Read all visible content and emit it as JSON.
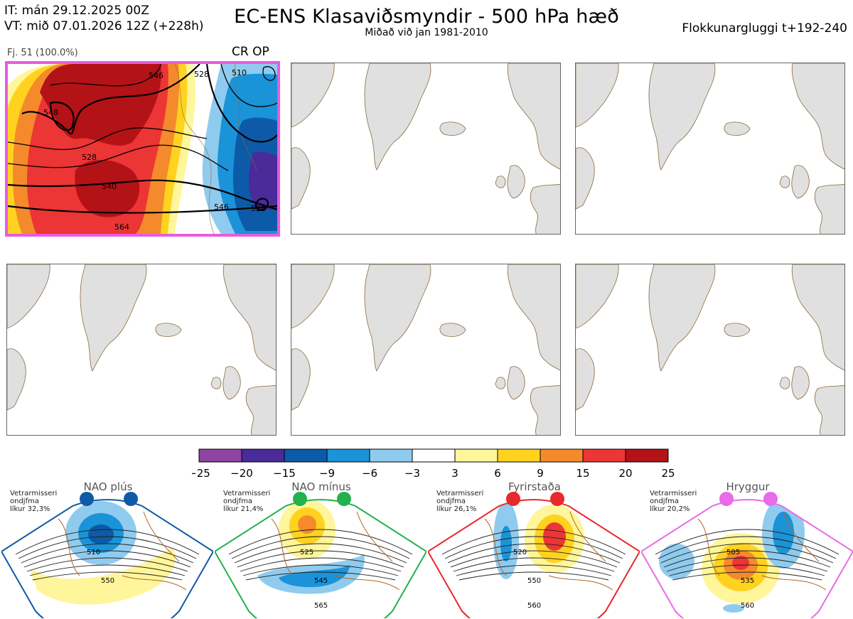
{
  "header": {
    "it_line": "IT: mán 29.12.2025 00Z",
    "vt_line": "VT: mið 07.01.2026 12Z  (+228h)",
    "title": "EC-ENS Klasaviðsmyndir - 500 hPa hæð",
    "subtitle": "Miðað við jan 1981-2010",
    "window_label": "Flokkunargluggi t+192-240"
  },
  "active_panel": {
    "caption": "Fj. 51 (100.0%)",
    "tag": "CR OP",
    "border_color": "#e85be0",
    "contour_labels": [
      "548",
      "528",
      "540",
      "546",
      "564",
      "546",
      "528",
      "510",
      "528"
    ]
  },
  "colorbar": {
    "ticks": [
      "−25",
      "−20",
      "−15",
      "−9",
      "−6",
      "−3",
      "3",
      "6",
      "9",
      "15",
      "20",
      "25"
    ],
    "colors": [
      "#8e44a0",
      "#4b2a9a",
      "#0c5aa8",
      "#1a93d8",
      "#8fcbee",
      "#ffffff",
      "#fff59a",
      "#ffd21f",
      "#f48a2c",
      "#ec3535",
      "#b31217"
    ]
  },
  "regimes": [
    {
      "name": "NAO plús",
      "meta_lines": [
        "Vetrarmisseri",
        "ondjfma",
        "líkur 32,3%"
      ],
      "color": "#0f5aa6",
      "labels": [
        "510",
        "550"
      ]
    },
    {
      "name": "NAO mínus",
      "meta_lines": [
        "Vetrarmisseri",
        "ondjfma",
        "líkur 21,4%"
      ],
      "color": "#22b14c",
      "labels": [
        "525",
        "545",
        "565"
      ]
    },
    {
      "name": "Fyrirstaða",
      "meta_lines": [
        "Vetrarmisseri",
        "ondjfma",
        "líkur 26,1%"
      ],
      "color": "#e8282b",
      "labels": [
        "520",
        "550",
        "560"
      ]
    },
    {
      "name": "Hryggur",
      "meta_lines": [
        "Vetrarmisseri",
        "ondjfma",
        "líkur 20,2%"
      ],
      "color": "#e86be8",
      "labels": [
        "505",
        "535",
        "560"
      ]
    }
  ]
}
